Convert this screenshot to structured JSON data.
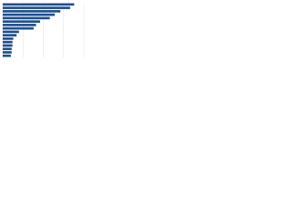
{
  "chart_data": {
    "type": "hbar",
    "categories": [
      null,
      null,
      null,
      null,
      null,
      null,
      null,
      null,
      null,
      null,
      null,
      null,
      null,
      null,
      null,
      null
    ],
    "values": [
      88,
      83,
      71,
      64,
      58,
      46,
      41,
      38,
      20,
      17,
      13,
      12,
      12,
      11,
      11,
      10
    ],
    "color": "#1f4e8c",
    "xlim": [
      0,
      100
    ],
    "xticks": [
      0,
      25,
      50,
      75,
      100
    ],
    "grid": true
  }
}
